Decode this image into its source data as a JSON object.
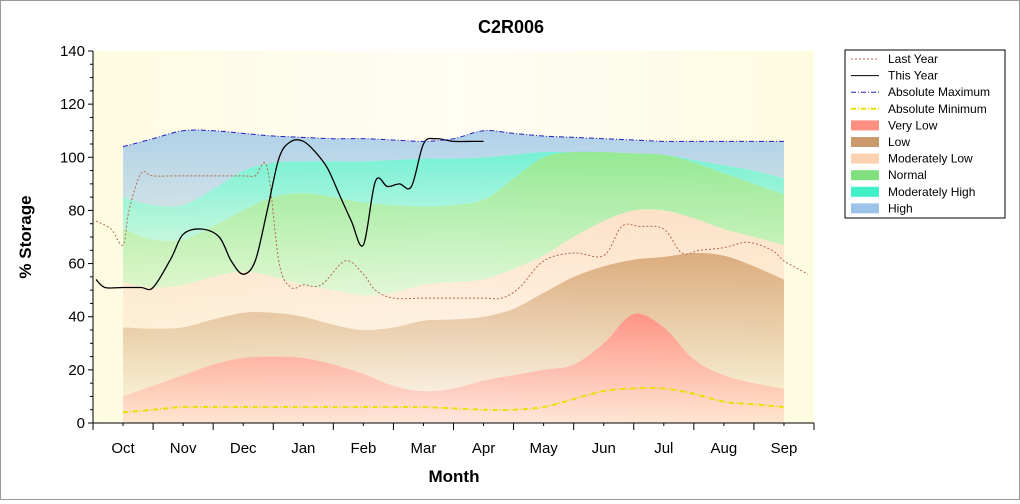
{
  "chart_data": {
    "type": "area",
    "title": "C2R006",
    "xlabel": "Month",
    "ylabel": "% Storage",
    "ylim": [
      0,
      140
    ],
    "yticks": [
      0,
      20,
      40,
      60,
      80,
      100,
      120,
      140
    ],
    "x_range": [
      -0.5,
      11.5
    ],
    "categories": [
      "Oct",
      "Nov",
      "Dec",
      "Jan",
      "Feb",
      "Mar",
      "Apr",
      "May",
      "Jun",
      "Jul",
      "Aug",
      "Sep"
    ],
    "grid": false,
    "legend_position": "right",
    "band_boundaries": {
      "x": [
        0,
        0.5,
        1,
        1.5,
        2,
        2.5,
        3,
        3.5,
        4,
        4.5,
        5,
        5.5,
        6,
        6.5,
        7,
        7.5,
        8,
        8.5,
        9,
        9.5,
        10,
        10.5,
        11
      ],
      "lower": [
        10,
        14,
        18,
        22,
        24.5,
        25,
        24.5,
        22,
        18.5,
        14,
        12,
        13,
        16,
        18,
        20,
        22,
        30,
        41,
        36,
        24,
        18,
        15,
        13
      ],
      "low_top": [
        36,
        35.5,
        36,
        39,
        41.5,
        41.5,
        40,
        37,
        35,
        36,
        38.5,
        39,
        40,
        43,
        49,
        55,
        59,
        61.5,
        62.5,
        64,
        63,
        59,
        54
      ],
      "moderately_low_top": [
        53,
        51,
        52,
        55,
        57,
        55,
        52,
        50,
        48,
        49,
        52,
        53,
        54,
        58,
        63,
        70,
        76,
        80,
        80,
        77,
        73,
        70,
        67
      ],
      "normal_top": [
        73,
        69,
        69,
        74,
        80,
        85,
        86.5,
        85,
        83,
        82,
        81.5,
        82,
        84,
        92,
        100,
        102,
        102,
        101.5,
        101,
        98,
        94,
        90,
        86
      ],
      "moderately_high_top": [
        85,
        82,
        82,
        88,
        95,
        98,
        98.5,
        98.5,
        98.5,
        99,
        99.5,
        99.5,
        100,
        101,
        102,
        102,
        102,
        101.5,
        101,
        99,
        97,
        95,
        92
      ],
      "high_top": [
        104,
        107,
        110,
        110,
        109,
        108,
        107.5,
        107,
        107,
        106.5,
        106,
        107,
        110,
        109,
        108,
        107.5,
        107,
        106.5,
        106,
        106,
        106,
        106,
        106
      ]
    },
    "series": [
      {
        "name": "Last Year",
        "style": "dotted",
        "color": "#b26b4a",
        "x": [
          -0.45,
          -0.2,
          0,
          0.1,
          0.3,
          0.5,
          1,
          1.5,
          2,
          2.2,
          2.4,
          2.6,
          2.8,
          3,
          3.3,
          3.7,
          4,
          4.2,
          4.5,
          5,
          5.5,
          6,
          6.3,
          6.6,
          7,
          7.5,
          8,
          8.3,
          8.6,
          9,
          9.3,
          9.6,
          10,
          10.4,
          10.8,
          11,
          11.4
        ],
        "y": [
          76,
          73,
          67,
          80,
          94,
          93,
          93,
          93,
          93,
          93,
          96,
          60,
          51,
          52,
          52,
          61,
          56,
          50,
          47,
          47,
          47,
          47,
          47,
          51,
          61,
          64,
          63,
          74,
          74,
          73,
          64,
          65,
          66,
          68,
          65,
          61,
          56
        ]
      },
      {
        "name": "This Year",
        "style": "solid",
        "color": "#000000",
        "x": [
          -0.45,
          -0.3,
          0,
          0.3,
          0.5,
          0.8,
          1,
          1.3,
          1.6,
          1.8,
          2,
          2.2,
          2.4,
          2.6,
          2.8,
          3,
          3.2,
          3.4,
          3.6,
          3.8,
          4,
          4.2,
          4.4,
          4.6,
          4.8,
          5,
          5.2,
          5.5,
          5.8,
          6
        ],
        "y": [
          54,
          51,
          51,
          51,
          51,
          62,
          71,
          73,
          70,
          61,
          56,
          61,
          80,
          100,
          106,
          106,
          102,
          96,
          86,
          76,
          67,
          91,
          89,
          90,
          89,
          105,
          107,
          106,
          106,
          106
        ]
      },
      {
        "name": "Absolute Maximum",
        "style": "dashdot",
        "color": "#2020c0",
        "x": [
          0,
          0.5,
          1,
          1.5,
          2,
          2.5,
          3,
          3.5,
          4,
          4.5,
          5,
          5.5,
          6,
          6.5,
          7,
          7.5,
          8,
          8.5,
          9,
          9.5,
          10,
          10.5,
          11
        ],
        "y": [
          104,
          107,
          110,
          110,
          109,
          108,
          107.5,
          107,
          107,
          106.5,
          106,
          107,
          110,
          109,
          108,
          107.5,
          107,
          106.5,
          106,
          106,
          106,
          106,
          106
        ]
      },
      {
        "name": "Absolute Minimum",
        "style": "dashdot",
        "color": "#e8e000",
        "x": [
          0,
          0.5,
          1,
          1.5,
          2,
          2.5,
          3,
          3.5,
          4,
          4.5,
          5,
          5.5,
          6,
          6.5,
          7,
          7.5,
          8,
          8.5,
          9,
          9.5,
          10,
          10.5,
          11
        ],
        "y": [
          4,
          5,
          6,
          6,
          6,
          6,
          6,
          6,
          6,
          6,
          6,
          5.5,
          5,
          5,
          6,
          9,
          12,
          13,
          13,
          11,
          8,
          7,
          6
        ]
      }
    ],
    "bands": [
      {
        "name": "Very Low",
        "color": "#ff8f80",
        "legend_color": "#ff8f80"
      },
      {
        "name": "Low",
        "color": "#d9a878",
        "legend_color": "#c89a6c"
      },
      {
        "name": "Moderately Low",
        "color": "#fde0c8",
        "legend_color": "#fbd3b2"
      },
      {
        "name": "Normal",
        "color": "#8fe88f",
        "legend_color": "#80e080"
      },
      {
        "name": "Moderately High",
        "color": "#6ff0d2",
        "legend_color": "#3ff0c8"
      },
      {
        "name": "High",
        "color": "#a8cce8",
        "legend_color": "#9cc4e8"
      }
    ]
  }
}
